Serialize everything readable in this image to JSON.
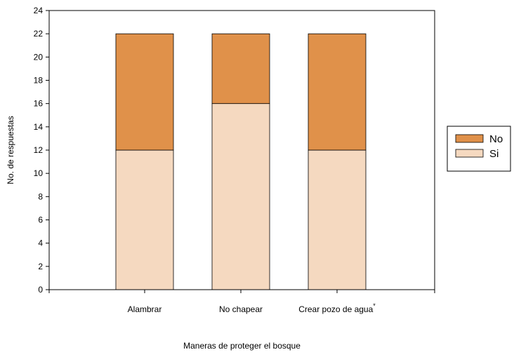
{
  "chart_data": {
    "type": "bar",
    "stacked": true,
    "categories": [
      "Alambrar",
      "No chapear",
      "Crear pozo de agua"
    ],
    "category_marks": [
      "",
      "",
      "*"
    ],
    "series": [
      {
        "name": "Si",
        "values": [
          12,
          16,
          12
        ],
        "color": "#F5D9C0"
      },
      {
        "name": "No",
        "values": [
          10,
          6,
          10
        ],
        "color": "#E0914A"
      }
    ],
    "xlabel": "Maneras de proteger el bosque",
    "ylabel": "No. de respuestas",
    "ylim": [
      0,
      24
    ],
    "yticks": [
      0,
      2,
      4,
      6,
      8,
      10,
      12,
      14,
      16,
      18,
      20,
      22,
      24
    ],
    "grid": false,
    "legend": {
      "position": "right",
      "entries": [
        {
          "name": "No",
          "color": "#E0914A"
        },
        {
          "name": "Si",
          "color": "#F5D9C0"
        }
      ]
    }
  }
}
